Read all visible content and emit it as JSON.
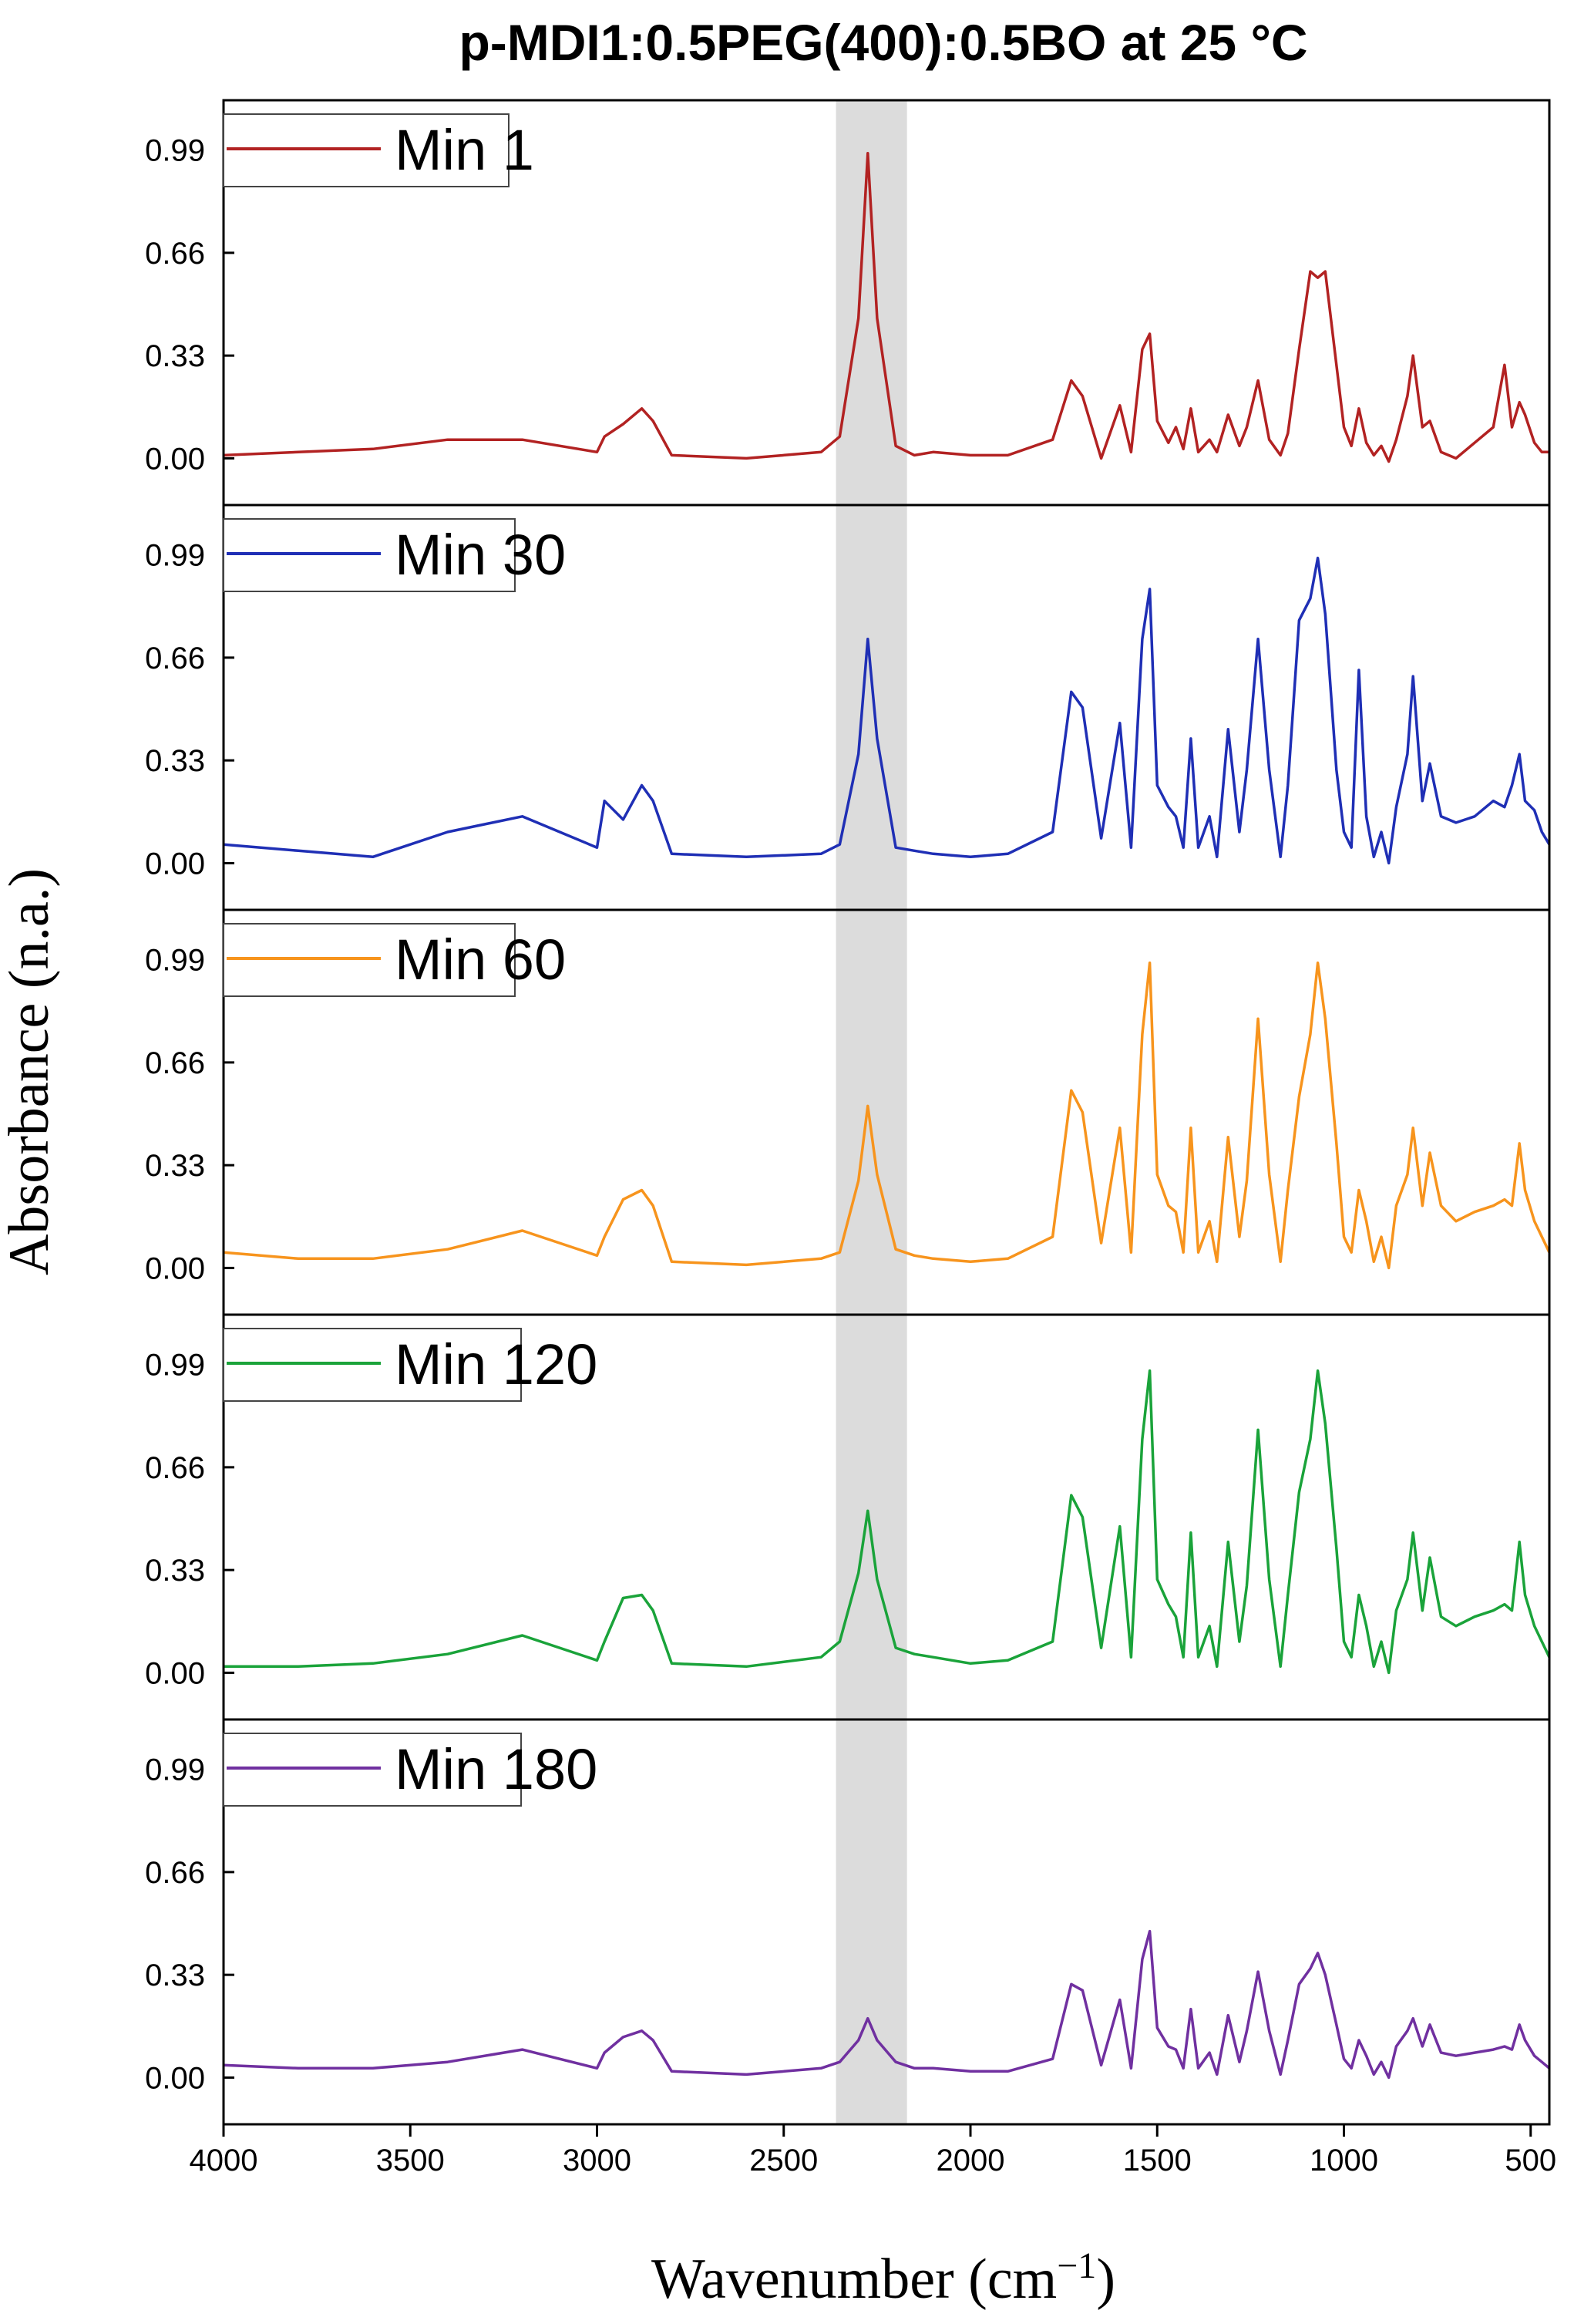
{
  "chart_data": {
    "type": "line",
    "title": "p-MDI1:0.5PEG(400):0.5BO at 25 °C",
    "xlabel": "Wavenumber (cm",
    "xlabel_sup": "−1",
    "xlabel_close": ")",
    "ylabel": "Absorbance (n.a.)",
    "xlim": [
      4000,
      450
    ],
    "ylim": [
      -0.15,
      1.15
    ],
    "x_ticks": [
      4000,
      3500,
      3000,
      2500,
      2000,
      1500,
      1000,
      500
    ],
    "x_tick_labels": [
      "4000",
      "3500",
      "3000",
      "2500",
      "2000",
      "1500",
      "1000",
      "500"
    ],
    "y_ticks": [
      0,
      0.33,
      0.66,
      0.99
    ],
    "y_tick_labels": [
      "0.00",
      "0.33",
      "0.66",
      "0.99"
    ],
    "highlight_band": [
      2360,
      2170
    ],
    "highlight_color": "#dcdcdc",
    "legend_location": "top-left",
    "x": [
      4000,
      3800,
      3600,
      3400,
      3200,
      3000,
      2980,
      2930,
      2880,
      2850,
      2800,
      2600,
      2400,
      2350,
      2300,
      2275,
      2250,
      2200,
      2150,
      2100,
      2000,
      1900,
      1780,
      1730,
      1700,
      1650,
      1600,
      1570,
      1540,
      1520,
      1500,
      1470,
      1450,
      1430,
      1410,
      1390,
      1360,
      1340,
      1310,
      1280,
      1260,
      1230,
      1200,
      1170,
      1150,
      1120,
      1090,
      1070,
      1050,
      1020,
      1000,
      980,
      960,
      940,
      920,
      900,
      880,
      860,
      830,
      815,
      790,
      770,
      740,
      700,
      650,
      600,
      570,
      550,
      530,
      515,
      490,
      470,
      450
    ],
    "series": [
      {
        "name": "Min 1",
        "color": "#b22222",
        "values": [
          0.01,
          0.02,
          0.03,
          0.06,
          0.06,
          0.02,
          0.07,
          0.11,
          0.16,
          0.12,
          0.01,
          0.0,
          0.02,
          0.07,
          0.45,
          0.98,
          0.45,
          0.04,
          0.01,
          0.02,
          0.01,
          0.01,
          0.06,
          0.25,
          0.2,
          0.0,
          0.17,
          0.02,
          0.35,
          0.4,
          0.12,
          0.05,
          0.1,
          0.03,
          0.16,
          0.02,
          0.06,
          0.02,
          0.14,
          0.04,
          0.1,
          0.25,
          0.06,
          0.01,
          0.08,
          0.35,
          0.6,
          0.58,
          0.6,
          0.3,
          0.1,
          0.04,
          0.16,
          0.05,
          0.01,
          0.04,
          -0.01,
          0.06,
          0.2,
          0.33,
          0.1,
          0.12,
          0.02,
          0.0,
          0.05,
          0.1,
          0.3,
          0.1,
          0.18,
          0.14,
          0.05,
          0.02,
          0.02
        ]
      },
      {
        "name": "Min 30",
        "color": "#1f2fb5",
        "values": [
          0.06,
          0.04,
          0.02,
          0.1,
          0.15,
          0.05,
          0.2,
          0.14,
          0.25,
          0.2,
          0.03,
          0.02,
          0.03,
          0.06,
          0.35,
          0.72,
          0.4,
          0.05,
          0.04,
          0.03,
          0.02,
          0.03,
          0.1,
          0.55,
          0.5,
          0.08,
          0.45,
          0.05,
          0.72,
          0.88,
          0.25,
          0.18,
          0.15,
          0.05,
          0.4,
          0.05,
          0.15,
          0.02,
          0.43,
          0.1,
          0.3,
          0.72,
          0.3,
          0.02,
          0.25,
          0.78,
          0.85,
          0.98,
          0.8,
          0.3,
          0.1,
          0.05,
          0.62,
          0.15,
          0.02,
          0.1,
          0.0,
          0.18,
          0.35,
          0.6,
          0.2,
          0.32,
          0.15,
          0.13,
          0.15,
          0.2,
          0.18,
          0.25,
          0.35,
          0.2,
          0.17,
          0.1,
          0.06
        ]
      },
      {
        "name": "Min 60",
        "color": "#f7941d",
        "values": [
          0.05,
          0.03,
          0.03,
          0.06,
          0.12,
          0.04,
          0.1,
          0.22,
          0.25,
          0.2,
          0.02,
          0.01,
          0.03,
          0.05,
          0.28,
          0.52,
          0.3,
          0.06,
          0.04,
          0.03,
          0.02,
          0.03,
          0.1,
          0.57,
          0.5,
          0.08,
          0.45,
          0.05,
          0.75,
          0.98,
          0.3,
          0.2,
          0.18,
          0.05,
          0.45,
          0.05,
          0.15,
          0.02,
          0.42,
          0.1,
          0.28,
          0.8,
          0.3,
          0.02,
          0.25,
          0.55,
          0.75,
          0.98,
          0.8,
          0.4,
          0.1,
          0.05,
          0.25,
          0.15,
          0.02,
          0.1,
          0.0,
          0.2,
          0.3,
          0.45,
          0.2,
          0.37,
          0.2,
          0.15,
          0.18,
          0.2,
          0.22,
          0.2,
          0.4,
          0.25,
          0.15,
          0.1,
          0.05
        ]
      },
      {
        "name": "Min 120",
        "color": "#1aa33a",
        "values": [
          0.02,
          0.02,
          0.03,
          0.06,
          0.12,
          0.04,
          0.1,
          0.24,
          0.25,
          0.2,
          0.03,
          0.02,
          0.05,
          0.1,
          0.32,
          0.52,
          0.3,
          0.08,
          0.06,
          0.05,
          0.03,
          0.04,
          0.1,
          0.57,
          0.5,
          0.08,
          0.47,
          0.05,
          0.75,
          0.97,
          0.3,
          0.22,
          0.18,
          0.05,
          0.45,
          0.05,
          0.15,
          0.02,
          0.42,
          0.1,
          0.28,
          0.78,
          0.3,
          0.02,
          0.25,
          0.58,
          0.75,
          0.97,
          0.8,
          0.4,
          0.1,
          0.05,
          0.25,
          0.15,
          0.02,
          0.1,
          0.0,
          0.2,
          0.3,
          0.45,
          0.2,
          0.37,
          0.18,
          0.15,
          0.18,
          0.2,
          0.22,
          0.2,
          0.42,
          0.25,
          0.15,
          0.1,
          0.05
        ]
      },
      {
        "name": "Min 180",
        "color": "#7030a0",
        "values": [
          0.04,
          0.03,
          0.03,
          0.05,
          0.09,
          0.03,
          0.08,
          0.13,
          0.15,
          0.12,
          0.02,
          0.01,
          0.03,
          0.05,
          0.12,
          0.19,
          0.12,
          0.05,
          0.03,
          0.03,
          0.02,
          0.02,
          0.06,
          0.3,
          0.28,
          0.04,
          0.25,
          0.03,
          0.38,
          0.47,
          0.16,
          0.1,
          0.09,
          0.03,
          0.22,
          0.03,
          0.08,
          0.01,
          0.2,
          0.05,
          0.15,
          0.34,
          0.15,
          0.01,
          0.12,
          0.3,
          0.35,
          0.4,
          0.33,
          0.17,
          0.06,
          0.03,
          0.12,
          0.07,
          0.01,
          0.05,
          0.0,
          0.1,
          0.15,
          0.19,
          0.1,
          0.17,
          0.08,
          0.07,
          0.08,
          0.09,
          0.1,
          0.09,
          0.17,
          0.12,
          0.07,
          0.05,
          0.03
        ]
      }
    ]
  }
}
